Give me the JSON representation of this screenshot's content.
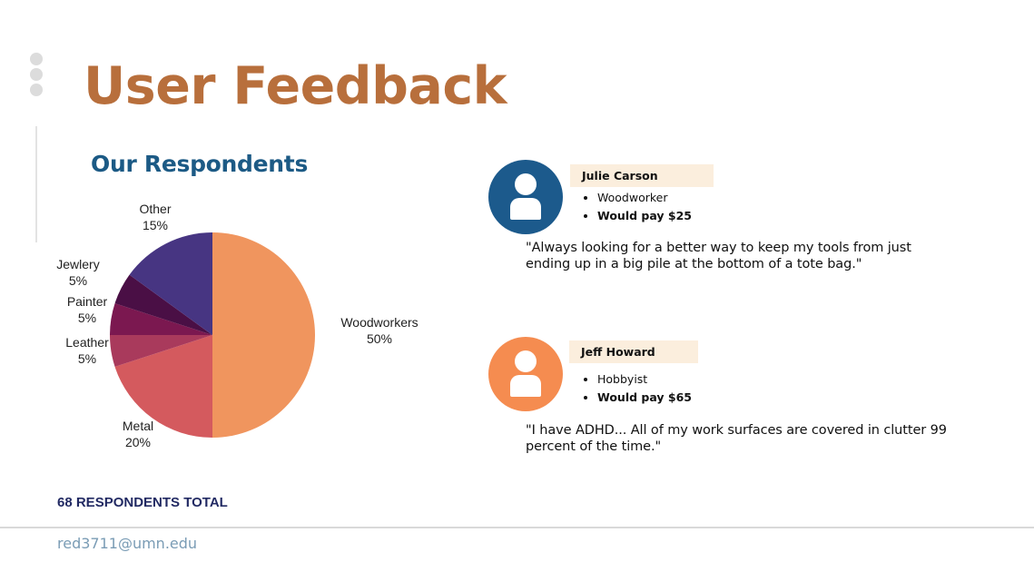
{
  "slide": {
    "title": "User Feedback",
    "subtitle": "Our Respondents",
    "total": "68 RESPONDENTS TOTAL",
    "email": "red3711@umn.edu"
  },
  "chart_data": {
    "type": "pie",
    "categories": [
      "Woodworkers",
      "Metal",
      "Leather",
      "Painter",
      "Jewlery",
      "Other"
    ],
    "values": [
      50,
      20,
      5,
      5,
      5,
      15
    ],
    "value_labels": [
      "50%",
      "20%",
      "5%",
      "5%",
      "5%",
      "15%"
    ],
    "colors": [
      "#f0955e",
      "#d45a5e",
      "#a93a5c",
      "#7b1850",
      "#4a0f45",
      "#473582"
    ],
    "start": "12 o'clock",
    "direction": "clockwise"
  },
  "testimonials": [
    {
      "name": "Julie Carson",
      "role": "Woodworker",
      "pay": "Would pay $25",
      "quote_lines": [
        "\"Always looking for a better way to keep my tools from just",
        "ending up in a big pile at the bottom of a tote bag.\""
      ],
      "avatar_color": "#1c5a8c",
      "avatar_icon": "user-icon"
    },
    {
      "name": "Jeff Howard",
      "role": "Hobbyist",
      "pay": "Would pay $65",
      "quote_lines": [
        "\"I have ADHD... All of my work surfaces are covered in clutter 99",
        "percent of the time.\""
      ],
      "avatar_color": "#f58c50",
      "avatar_icon": "user-icon"
    }
  ]
}
